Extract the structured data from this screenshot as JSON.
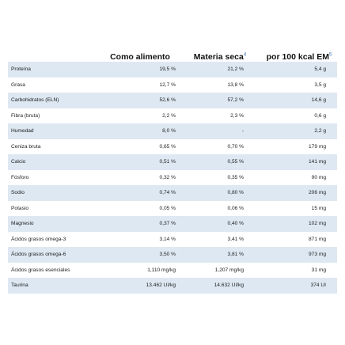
{
  "header": {
    "col1": "Como alimento",
    "col2": "Materia seca",
    "col2_note": "4",
    "col3": "por 100 kcal EM",
    "col3_note": "5"
  },
  "rows": [
    {
      "name": "Proteína",
      "food": "19,5 %",
      "dry": "21,2 %",
      "per100": "5,4 g"
    },
    {
      "name": "Grasa",
      "food": "12,7 %",
      "dry": "13,8 %",
      "per100": "3,5 g"
    },
    {
      "name": "Carbohidratos (ELN)",
      "food": "52,6 %",
      "dry": "57,2 %",
      "per100": "14,6 g"
    },
    {
      "name": "Fibra (bruta)",
      "food": "2,2 %",
      "dry": "2,3 %",
      "per100": "0,6 g"
    },
    {
      "name": "Humedad",
      "food": "8,0 %",
      "dry": "-",
      "per100": "2,2 g"
    },
    {
      "name": "Ceniza bruta",
      "food": "0,65 %",
      "dry": "0,70 %",
      "per100": "179 mg"
    },
    {
      "name": "Calcio",
      "food": "0,51 %",
      "dry": "0,55 %",
      "per100": "141 mg"
    },
    {
      "name": "Fósforo",
      "food": "0,32 %",
      "dry": "0,35 %",
      "per100": "90 mg"
    },
    {
      "name": "Sodio",
      "food": "0,74 %",
      "dry": "0,80 %",
      "per100": "206 mg"
    },
    {
      "name": "Potasio",
      "food": "0,05 %",
      "dry": "0,06 %",
      "per100": "15 mg"
    },
    {
      "name": "Magnesio",
      "food": "0,37 %",
      "dry": "0,40 %",
      "per100": "102 mg"
    },
    {
      "name": "Ácidos grasos omega-3",
      "food": "3,14 %",
      "dry": "3,41 %",
      "per100": "871 mg"
    },
    {
      "name": "Ácidos grasos omega-6",
      "food": "3,50 %",
      "dry": "3,81 %",
      "per100": "973 mg"
    },
    {
      "name": "Ácidos grasos esenciales",
      "food": "1,110 mg/kg",
      "dry": "1,207 mg/kg",
      "per100": "31 mg"
    },
    {
      "name": "Taurina",
      "food": "13.462 UI/kg",
      "dry": "14.632 UI/kg",
      "per100": "374 UI"
    }
  ]
}
